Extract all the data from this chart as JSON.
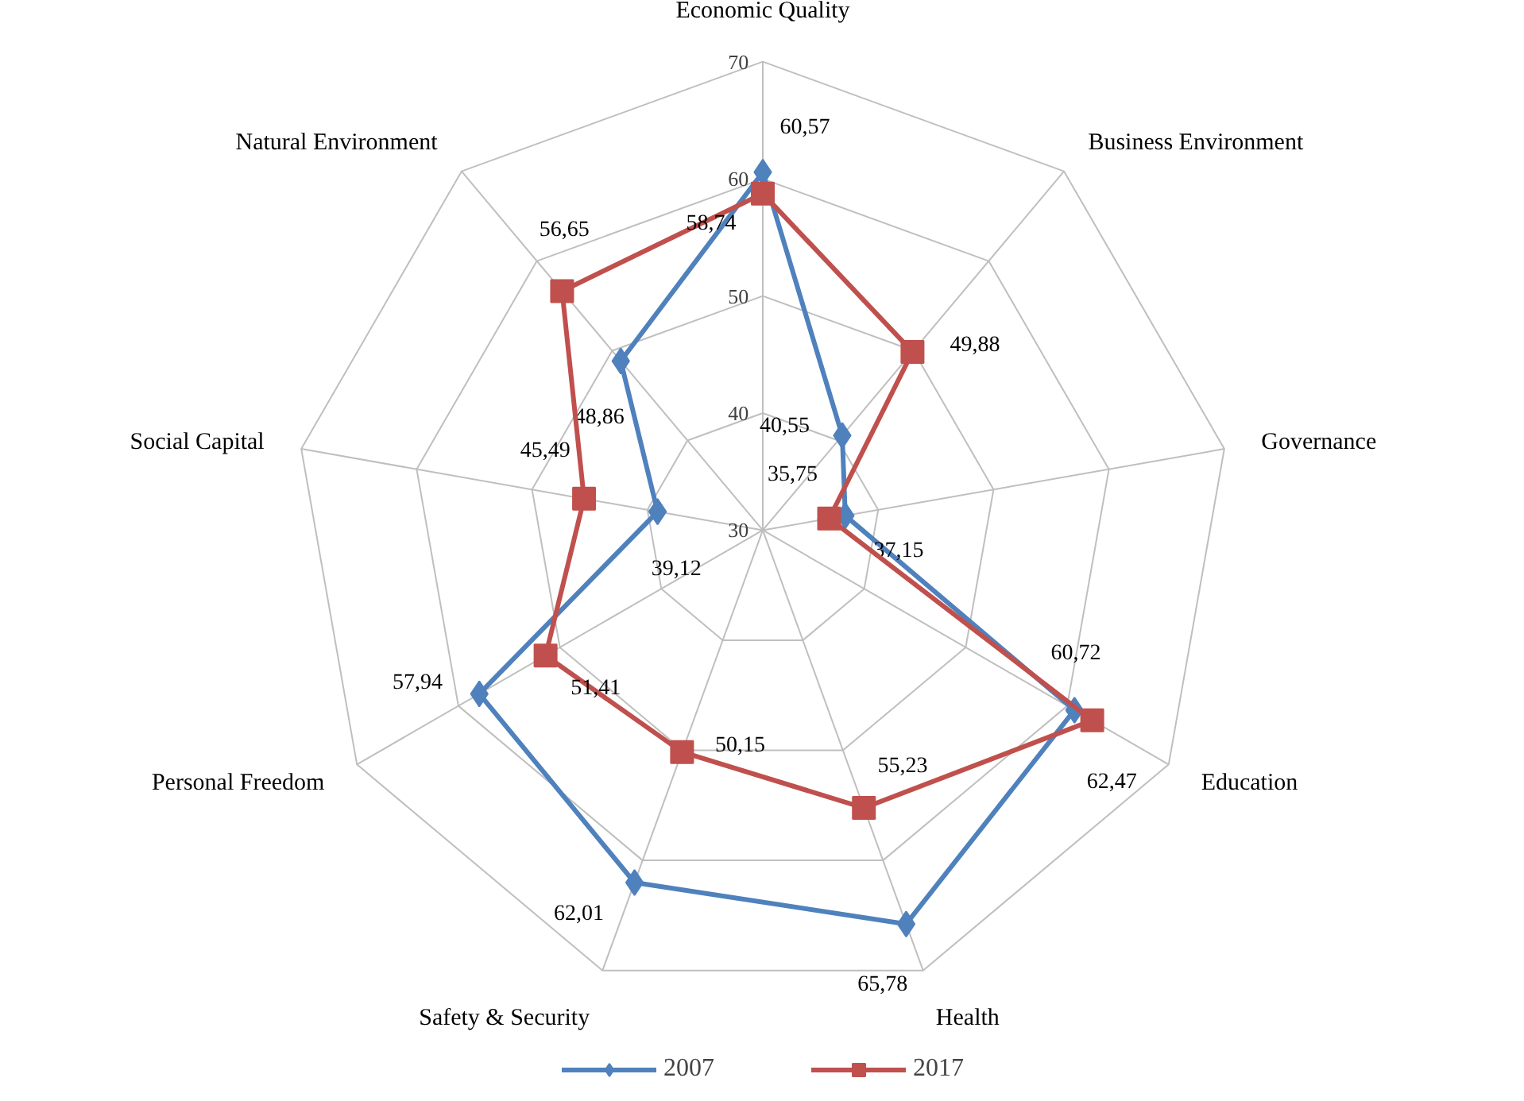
{
  "chart_data": {
    "type": "radar",
    "categories": [
      "Economic Quality",
      "Business Environment",
      "Governance",
      "Education",
      "Health",
      "Safety & Security",
      "Personal Freedom",
      "Social Capital",
      "Natural Environment"
    ],
    "series": [
      {
        "name": "2007",
        "color": "#4f81bd",
        "marker": "diamond",
        "values": [
          60.57,
          40.55,
          37.15,
          60.72,
          65.78,
          62.01,
          57.94,
          39.12,
          48.86
        ],
        "value_labels": [
          "60,57",
          "40,55",
          "37,15",
          "60,72",
          "65,78",
          "62,01",
          "57,94",
          "39,12",
          "48,86"
        ]
      },
      {
        "name": "2017",
        "color": "#c0504d",
        "marker": "square",
        "values": [
          58.74,
          49.88,
          35.75,
          62.47,
          55.23,
          50.15,
          51.41,
          45.49,
          56.65
        ],
        "value_labels": [
          "58,74",
          "49,88",
          "35,75",
          "62,47",
          "55,23",
          "50,15",
          "51,41",
          "45,49",
          "56,65"
        ]
      }
    ],
    "ylim": [
      30,
      70
    ],
    "yticks": [
      30,
      40,
      50,
      60,
      70
    ],
    "grid": true,
    "legend": "bottom"
  }
}
